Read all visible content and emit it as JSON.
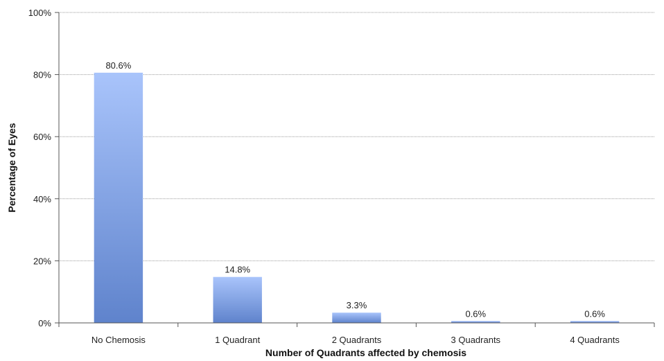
{
  "chart_data": {
    "type": "bar",
    "title": "",
    "xlabel": "Number of Quadrants affected by chemosis",
    "ylabel": "Percentage of Eyes",
    "categories": [
      "No Chemosis",
      "1 Quadrant",
      "2 Quadrants",
      "3 Quadrants",
      "4 Quadrants"
    ],
    "values": [
      80.6,
      14.8,
      3.3,
      0.6,
      0.6
    ],
    "data_labels": [
      "80.6%",
      "14.8%",
      "3.3%",
      "0.6%",
      "0.6%"
    ],
    "ylim": [
      0,
      100
    ],
    "yticks": [
      0,
      20,
      40,
      60,
      80,
      100
    ],
    "ytick_labels": [
      "0%",
      "20%",
      "40%",
      "60%",
      "80%",
      "100%"
    ],
    "grid": true,
    "legend": "none",
    "colors": {
      "bar_top": "#a9c4fb",
      "bar_bottom": "#5f83cc",
      "grid": "#9a9a9a",
      "axis": "#555555"
    }
  }
}
